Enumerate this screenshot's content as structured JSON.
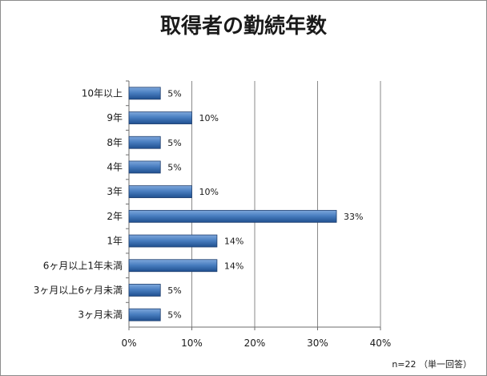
{
  "chart_data": {
    "type": "bar",
    "orientation": "horizontal",
    "title": "取得者の勤続年数",
    "categories": [
      "10年以上",
      "9年",
      "8年",
      "4年",
      "3年",
      "2年",
      "1年",
      "6ヶ月以上1年未満",
      "3ヶ月以上6ヶ月未満",
      "3ヶ月未満"
    ],
    "values": [
      5,
      10,
      5,
      5,
      10,
      33,
      14,
      14,
      5,
      5
    ],
    "value_labels": [
      "5%",
      "10%",
      "5%",
      "5%",
      "10%",
      "33%",
      "14%",
      "14%",
      "5%",
      "5%"
    ],
    "xlim": [
      0,
      40
    ],
    "x_ticks": [
      0,
      10,
      20,
      30,
      40
    ],
    "x_tick_labels": [
      "0%",
      "10%",
      "20%",
      "30%",
      "40%"
    ],
    "xlabel": "",
    "ylabel": "",
    "grid": "vertical",
    "legend": "none",
    "bar_color": "#3f72b5",
    "note": "n=22 （単一回答）"
  }
}
